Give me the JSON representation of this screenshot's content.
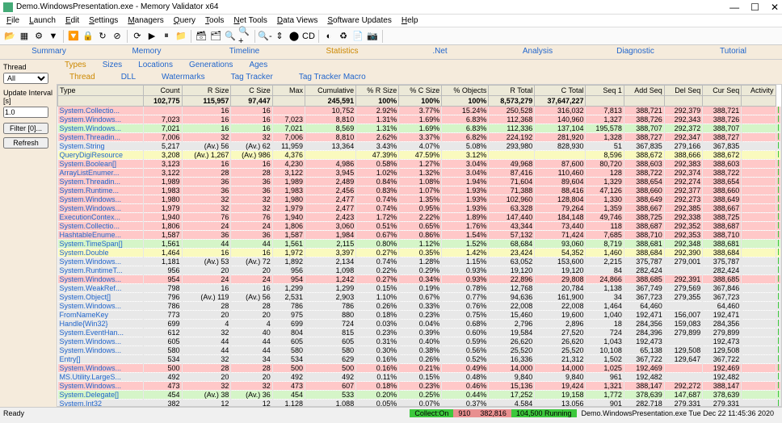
{
  "window": {
    "title": "Demo.WindowsPresentation.exe - Memory Validator x64",
    "min": "—",
    "max": "☐",
    "close": "✕"
  },
  "menu": [
    "File",
    "Launch",
    "Edit",
    "Settings",
    "Managers",
    "Query",
    "Tools",
    "Net Tools",
    "Data Views",
    "Software Updates",
    "Help"
  ],
  "toolbar_icons": [
    "📂",
    "▦",
    "⚙",
    "▼",
    "🔽",
    "🔒",
    "↻",
    "⊘",
    "⟳",
    "▶",
    "⏸",
    "📁",
    "🗃",
    "🗂",
    "🔍",
    "🔍+",
    "🔍-",
    "⇕",
    "⬤",
    "CD",
    "◐",
    "♻",
    "📄",
    "📷"
  ],
  "main_tabs": [
    "Summary",
    "Memory",
    "Timeline",
    "Statistics",
    ".Net",
    "Analysis",
    "Diagnostic",
    "Tutorial"
  ],
  "main_active": 3,
  "subtabs1": [
    "Types",
    "Sizes",
    "Locations",
    "Generations",
    "Ages"
  ],
  "subtabs1_active": 0,
  "subtabs2": [
    "Thread",
    "DLL",
    "Watermarks",
    "Tag Tracker",
    "Tag Tracker Macro"
  ],
  "subtabs2_active": 0,
  "sidebar": {
    "thread_label": "Thread",
    "thread_value": "All",
    "interval_label": "Update Interval [s]",
    "interval_value": "1.0",
    "filter_btn": "Filter [0]...",
    "refresh_btn": "Refresh"
  },
  "columns": [
    "Type",
    "Count",
    "R Size",
    "C Size",
    "Max",
    "Cumulative",
    "% R Size",
    "% C Size",
    "% Objects",
    "R Total",
    "C Total",
    "Seq 1",
    "Add Seq",
    "Del Seq",
    "Cur Seq",
    "Activity"
  ],
  "totals": [
    "",
    "102,775",
    "115,957",
    "97,447",
    "",
    "245,591",
    "100%",
    "100%",
    "100%",
    "8,573,279",
    "37,647,227",
    "",
    "",
    "",
    "",
    ""
  ],
  "colors": {
    "green_row": "#d5f5c8",
    "red_row": "#ffc8c8",
    "yellow_row": "#fafabe",
    "grey_row": "#e8e8e8",
    "bar_green": "#3cc83c",
    "bar_red": "#e05050",
    "link": "#2266cc"
  },
  "rows": [
    {
      "c": "r-red",
      "cells": [
        "System.Collectio...",
        "",
        "16",
        "16",
        "",
        "10,752",
        "2.92%",
        "3.77%",
        "15.24%",
        "250,528",
        "316,032",
        "7,813",
        "388,721",
        "292,379",
        "388,721",
        ""
      ]
    },
    {
      "c": "r-red",
      "cells": [
        "System.Windows...",
        "7,023",
        "16",
        "16",
        "7,023",
        "8,810",
        "1.31%",
        "1.69%",
        "6.83%",
        "112,368",
        "140,960",
        "1,327",
        "388,726",
        "292,343",
        "388,726",
        ""
      ]
    },
    {
      "c": "r-green",
      "cells": [
        "System.Windows...",
        "7,021",
        "16",
        "16",
        "7,021",
        "8,569",
        "1.31%",
        "1.69%",
        "6.83%",
        "112,336",
        "137,104",
        "195,578",
        "388,707",
        "292,372",
        "388,707",
        ""
      ]
    },
    {
      "c": "r-red",
      "cells": [
        "System.Threadin...",
        "7,006",
        "32",
        "32",
        "7,006",
        "8,810",
        "2.62%",
        "3.37%",
        "6.82%",
        "224,192",
        "281,920",
        "1,328",
        "388,727",
        "292,347",
        "388,727",
        ""
      ]
    },
    {
      "c": "r-grey",
      "cells": [
        "System.String",
        "5,217",
        "(Av.) 56",
        "(Av.) 62",
        "11,959",
        "13,364",
        "3.43%",
        "4.07%",
        "5.08%",
        "293,980",
        "828,930",
        "51",
        "367,835",
        "279,166",
        "367,835",
        ""
      ]
    },
    {
      "c": "r-yellow",
      "cells": [
        "QueryDigiResource",
        "3,208",
        "(Av.) 1,267",
        "(Av.) 986",
        "4,376",
        "",
        "47.39%",
        "47.59%",
        "3.12%",
        "",
        "",
        "8,596",
        "388,672",
        "388,666",
        "388,672",
        ""
      ]
    },
    {
      "c": "r-red",
      "cells": [
        "System.Boolean[]",
        "3,123",
        "16",
        "16",
        "4,230",
        "4,986",
        "0.58%",
        "1.27%",
        "3.04%",
        "49,968",
        "87,600",
        "80,720",
        "388,603",
        "292,383",
        "388,603",
        ""
      ]
    },
    {
      "c": "r-red",
      "cells": [
        "ArrayListEnumer...",
        "3,122",
        "28",
        "28",
        "3,122",
        "3,945",
        "1.02%",
        "1.32%",
        "3.04%",
        "87,416",
        "110,460",
        "128",
        "388,722",
        "292,374",
        "388,722",
        ""
      ]
    },
    {
      "c": "r-red",
      "cells": [
        "System.Threadin...",
        "1,989",
        "36",
        "36",
        "1,989",
        "2,489",
        "0.84%",
        "1.08%",
        "1.94%",
        "71,604",
        "89,604",
        "1,329",
        "388,654",
        "292,274",
        "388,654",
        ""
      ]
    },
    {
      "c": "r-red",
      "cells": [
        "System.Runtime...",
        "1,983",
        "36",
        "36",
        "1,983",
        "2,456",
        "0.83%",
        "1.07%",
        "1.93%",
        "71,388",
        "88,416",
        "47,126",
        "388,660",
        "292,377",
        "388,660",
        ""
      ]
    },
    {
      "c": "r-red",
      "cells": [
        "System.Windows...",
        "1,980",
        "32",
        "32",
        "1,980",
        "2,477",
        "0.74%",
        "1.35%",
        "1.93%",
        "102,960",
        "128,804",
        "1,330",
        "388,649",
        "292,273",
        "388,649",
        ""
      ]
    },
    {
      "c": "r-red",
      "cells": [
        "System.Windows...",
        "1,979",
        "32",
        "32",
        "1,979",
        "2,477",
        "0.74%",
        "0.95%",
        "1.93%",
        "63,328",
        "79,264",
        "1,359",
        "388,667",
        "292,385",
        "388,667",
        ""
      ]
    },
    {
      "c": "r-red",
      "cells": [
        "ExecutionContex...",
        "1,940",
        "76",
        "76",
        "1,940",
        "2,423",
        "1.72%",
        "2.22%",
        "1.89%",
        "147,440",
        "184,148",
        "49,746",
        "388,725",
        "292,338",
        "388,725",
        ""
      ]
    },
    {
      "c": "r-red",
      "cells": [
        "System.Collectio...",
        "1,806",
        "24",
        "24",
        "1,806",
        "3,060",
        "0.51%",
        "0.65%",
        "1.76%",
        "43,344",
        "73,440",
        "118",
        "388,687",
        "292,352",
        "388,687",
        ""
      ]
    },
    {
      "c": "r-red",
      "cells": [
        "HashtableEnume...",
        "1,587",
        "36",
        "36",
        "1,587",
        "1,984",
        "0.67%",
        "0.86%",
        "1.54%",
        "57,132",
        "71,424",
        "7,685",
        "388,710",
        "292,353",
        "388,710",
        ""
      ]
    },
    {
      "c": "r-green",
      "cells": [
        "System.TimeSpan[]",
        "1,561",
        "44",
        "44",
        "1,561",
        "2,115",
        "0.80%",
        "1.12%",
        "1.52%",
        "68,684",
        "93,060",
        "8,719",
        "388,681",
        "292,348",
        "388,681",
        ""
      ]
    },
    {
      "c": "r-yellow",
      "cells": [
        "System.Double",
        "1,464",
        "16",
        "16",
        "1,972",
        "3,397",
        "0.27%",
        "0.35%",
        "1.42%",
        "23,424",
        "54,352",
        "1,460",
        "388,684",
        "292,390",
        "388,684",
        ""
      ]
    },
    {
      "c": "r-grey",
      "cells": [
        "System.Windows...",
        "1,181",
        "(Av.) 53",
        "(Av.) 72",
        "1,892",
        "2,134",
        "0.74%",
        "1.28%",
        "1.15%",
        "63,052",
        "153,600",
        "2,215",
        "375,787",
        "279,001",
        "375,787",
        ""
      ]
    },
    {
      "c": "r-grey",
      "cells": [
        "System.RuntimeT...",
        "956",
        "20",
        "20",
        "956",
        "1,098",
        "0.22%",
        "0.29%",
        "0.93%",
        "19,120",
        "19,120",
        "84",
        "282,424",
        "",
        "282,424",
        ""
      ]
    },
    {
      "c": "r-red",
      "cells": [
        "System.Windows...",
        "954",
        "24",
        "24",
        "954",
        "1,242",
        "0.27%",
        "0.34%",
        "0.93%",
        "22,896",
        "29,808",
        "24,866",
        "388,685",
        "292,391",
        "388,685",
        ""
      ]
    },
    {
      "c": "r-grey",
      "cells": [
        "System.WeakRef...",
        "798",
        "16",
        "16",
        "1,299",
        "1,299",
        "0.15%",
        "0.19%",
        "0.78%",
        "12,768",
        "20,784",
        "1,138",
        "367,749",
        "279,569",
        "367,846",
        ""
      ]
    },
    {
      "c": "r-grey",
      "cells": [
        "System.Object[]",
        "796",
        "(Av.) 119",
        "(Av.) 56",
        "2,531",
        "2,903",
        "1.10%",
        "0.67%",
        "0.77%",
        "94,636",
        "161,900",
        "34",
        "367,723",
        "279,355",
        "367,723",
        ""
      ]
    },
    {
      "c": "r-grey",
      "cells": [
        "System.Windows...",
        "786",
        "28",
        "28",
        "786",
        "786",
        "0.26%",
        "0.33%",
        "0.76%",
        "22,008",
        "22,008",
        "1,464",
        "64,460",
        "",
        "64,460",
        ""
      ]
    },
    {
      "c": "r-grey",
      "cells": [
        "FromNameKey",
        "773",
        "20",
        "20",
        "975",
        "880",
        "0.18%",
        "0.23%",
        "0.75%",
        "15,460",
        "19,600",
        "1,040",
        "192,471",
        "156,007",
        "192,471",
        ""
      ]
    },
    {
      "c": "r-grey",
      "cells": [
        "Handle{Win32}",
        "699",
        "4",
        "4",
        "699",
        "724",
        "0.03%",
        "0.04%",
        "0.68%",
        "2,796",
        "2,896",
        "18",
        "284,356",
        "159,083",
        "284,356",
        ""
      ]
    },
    {
      "c": "r-grey",
      "cells": [
        "System.EventHan...",
        "612",
        "32",
        "40",
        "804",
        "815",
        "0.23%",
        "0.39%",
        "0.60%",
        "19,584",
        "27,520",
        "724",
        "284,396",
        "279,899",
        "279,899",
        ""
      ]
    },
    {
      "c": "r-grey",
      "cells": [
        "System.Windows...",
        "605",
        "44",
        "44",
        "605",
        "605",
        "0.31%",
        "0.40%",
        "0.59%",
        "26,620",
        "26,620",
        "1,043",
        "192,473",
        "",
        "192,473",
        ""
      ]
    },
    {
      "c": "r-grey",
      "cells": [
        "System.Windows...",
        "580",
        "44",
        "44",
        "580",
        "580",
        "0.30%",
        "0.38%",
        "0.56%",
        "25,520",
        "25,520",
        "10,108",
        "65,138",
        "129,508",
        "129,508",
        ""
      ]
    },
    {
      "c": "r-grey",
      "cells": [
        "Entry[]",
        "534",
        "32",
        "34",
        "534",
        "629",
        "0.16%",
        "0.26%",
        "0.52%",
        "16,336",
        "21,312",
        "1,502",
        "367,722",
        "129,647",
        "367,722",
        ""
      ]
    },
    {
      "c": "r-red",
      "cells": [
        "System.Windows...",
        "500",
        "28",
        "28",
        "500",
        "500",
        "0.16%",
        "0.21%",
        "0.49%",
        "14,000",
        "14,000",
        "1,025",
        "192,469",
        "",
        "192,469",
        ""
      ]
    },
    {
      "c": "r-grey",
      "cells": [
        "MS.Utility.LargeS...",
        "492",
        "20",
        "20",
        "492",
        "492",
        "0.11%",
        "0.15%",
        "0.48%",
        "9,840",
        "9,840",
        "961",
        "192,482",
        "",
        "192,482",
        ""
      ]
    },
    {
      "c": "r-red",
      "cells": [
        "System.Windows...",
        "473",
        "32",
        "32",
        "473",
        "607",
        "0.18%",
        "0.23%",
        "0.46%",
        "15,136",
        "19,424",
        "1,321",
        "388,147",
        "292,272",
        "388,147",
        ""
      ]
    },
    {
      "c": "r-green",
      "cells": [
        "System.Delegate[]",
        "454",
        "(Av.) 38",
        "(Av.) 36",
        "454",
        "533",
        "0.20%",
        "0.25%",
        "0.44%",
        "17,252",
        "19,158",
        "1,772",
        "378,639",
        "147,687",
        "378,639",
        ""
      ]
    },
    {
      "c": "r-grey",
      "cells": [
        "System.Int32",
        "382",
        "12",
        "12",
        "1,128",
        "1,088",
        "0.05%",
        "0.07%",
        "0.37%",
        "4,584",
        "13,056",
        "901",
        "282,718",
        "279,331",
        "279,331",
        ""
      ]
    },
    {
      "c": "r-red",
      "cells": [
        "System.Windows...",
        "369",
        "32",
        "32",
        "369",
        "369",
        "0.14%",
        "0.18%",
        "0.36%",
        "11,808",
        "11,808",
        "1,461",
        "192,465",
        "",
        "192,465",
        ""
      ]
    }
  ],
  "status": {
    "ready": "Ready",
    "collect": "Collect:On",
    "v1": "910",
    "v2": "382,816",
    "v3": "104,500 Running",
    "proc": "Demo.WindowsPresentation.exe Tue Dec 22 11:45:36 2020"
  }
}
